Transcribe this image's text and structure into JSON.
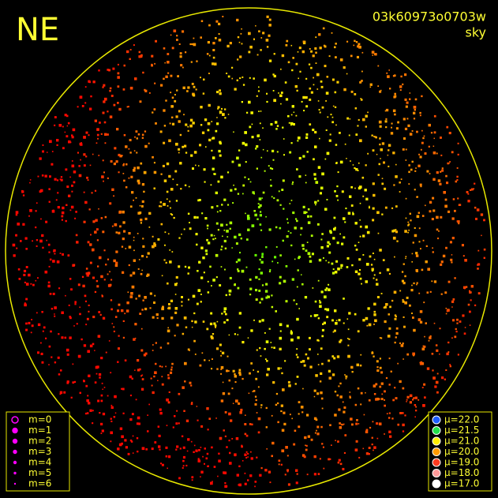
{
  "header": {
    "corner": "NE",
    "id": "03k60973o0703w",
    "mode": "sky"
  },
  "legend_left": {
    "items": [
      {
        "label": "m=0"
      },
      {
        "label": "m=1"
      },
      {
        "label": "m=2"
      },
      {
        "label": "m=3"
      },
      {
        "label": "m=4"
      },
      {
        "label": "m=5"
      },
      {
        "label": "m=6"
      }
    ]
  },
  "legend_right": {
    "items": [
      {
        "label": "μ=22.0",
        "color": "#1e5cff"
      },
      {
        "label": "μ=21.5",
        "color": "#22e04a"
      },
      {
        "label": "μ=21.0",
        "color": "#ffee00"
      },
      {
        "label": "μ=20.0",
        "color": "#ff9a00"
      },
      {
        "label": "μ=19.0",
        "color": "#ff3a20"
      },
      {
        "label": "μ=18.0",
        "color": "#ff9a9a"
      },
      {
        "label": "μ=17.0",
        "color": "#ffffff"
      }
    ]
  }
}
